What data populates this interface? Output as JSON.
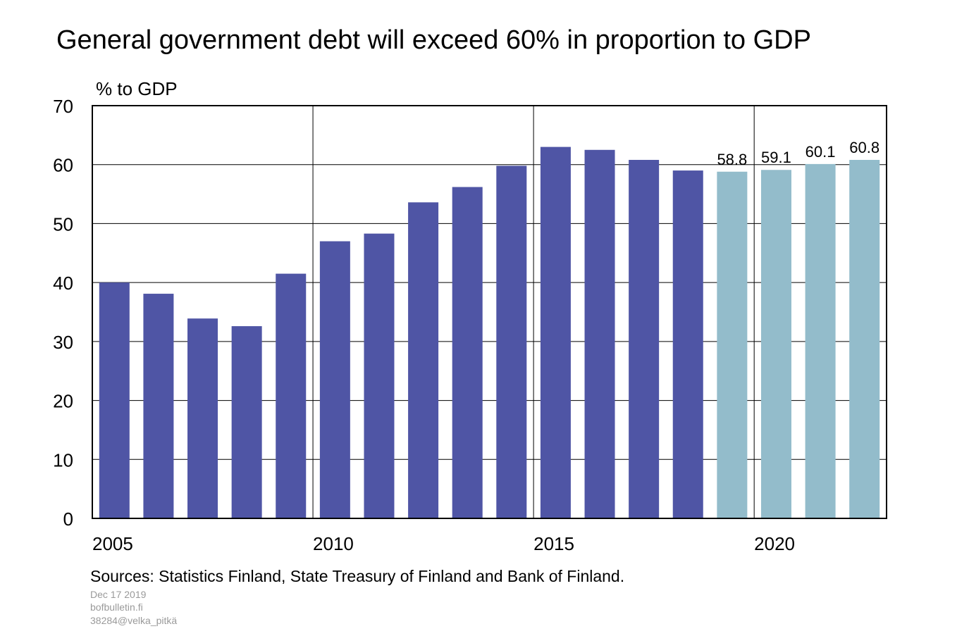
{
  "chart_data": {
    "type": "bar",
    "title": "General government debt will exceed 60% in proportion to GDP",
    "ylabel": "% to GDP",
    "xlabel": "",
    "ylim": [
      0,
      70
    ],
    "yticks": [
      0,
      10,
      20,
      30,
      40,
      50,
      60,
      70
    ],
    "xtick_labels": [
      "2005",
      "2010",
      "2015",
      "2020"
    ],
    "grid": true,
    "categories": [
      "2005",
      "2006",
      "2007",
      "2008",
      "2009",
      "2010",
      "2011",
      "2012",
      "2013",
      "2014",
      "2015",
      "2016",
      "2017",
      "2018",
      "2019",
      "2020",
      "2021",
      "2022"
    ],
    "values": [
      40.0,
      38.1,
      33.9,
      32.6,
      41.5,
      47.0,
      48.3,
      53.6,
      56.2,
      59.8,
      63.0,
      62.5,
      60.8,
      59.0,
      58.8,
      59.1,
      60.1,
      60.8
    ],
    "forecast_from": "2019",
    "data_labels": {
      "2019": "58.8",
      "2020": "59.1",
      "2021": "60.1",
      "2022": "60.8"
    },
    "colors": {
      "actual": "#4f55a5",
      "forecast": "#93bccb"
    }
  },
  "footer": {
    "sources": "Sources: Statistics Finland, State Treasury of Finland and Bank of Finland.",
    "date": "Dec 17 2019",
    "site": "bofbulletin.fi",
    "code": "38284@velka_pitkä"
  }
}
